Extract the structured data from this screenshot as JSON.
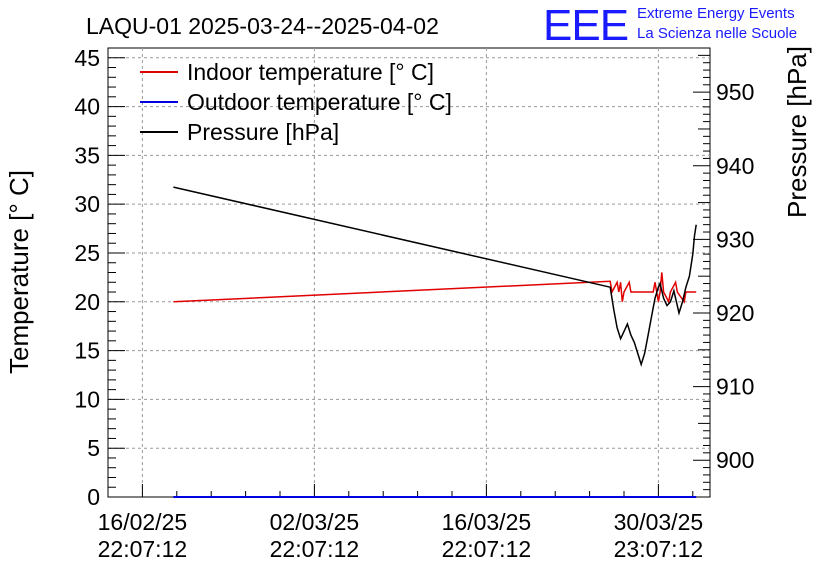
{
  "title": "LAQU-01 2025-03-24--2025-04-02",
  "logo": {
    "text": "EEE",
    "line1": "Extreme Energy Events",
    "line2": "La Scienza nelle Scuole",
    "color": "#1a1aff"
  },
  "chart_data": {
    "type": "line",
    "title": "LAQU-01 2025-03-24--2025-04-02",
    "ylabel": "Temperature [° C]",
    "y2label": "Pressure [hPa]",
    "ylim": [
      0,
      46
    ],
    "y2lim": [
      895,
      956
    ],
    "xlim_days": [
      -2,
      33
    ],
    "x_unit": "days since 16/02/25 22:07:12",
    "yticks": [
      0,
      5,
      10,
      15,
      20,
      25,
      30,
      35,
      40,
      45
    ],
    "y2ticks": [
      900,
      910,
      920,
      930,
      940,
      950
    ],
    "xticks": [
      {
        "day": 0,
        "line1": "16/02/25",
        "line2": "22:07:12"
      },
      {
        "day": 10,
        "line1": "02/03/25",
        "line2": "22:07:12"
      },
      {
        "day": 20,
        "line1": "16/03/25",
        "line2": "22:07:12"
      },
      {
        "day": 30,
        "line1": "30/03/25",
        "line2": "23:07:12"
      }
    ],
    "grid": true,
    "legend_position": "top-left",
    "series": [
      {
        "name": "Indoor temperature [° C]",
        "axis": "left",
        "color": "#e00000",
        "points": [
          [
            1.8,
            20.0
          ],
          [
            27.2,
            22.1
          ],
          [
            27.3,
            21.0
          ],
          [
            27.6,
            22.0
          ],
          [
            27.7,
            21.0
          ],
          [
            27.8,
            22.0
          ],
          [
            27.9,
            20.0
          ],
          [
            28.0,
            21.0
          ],
          [
            28.3,
            22.0
          ],
          [
            28.4,
            21.0
          ],
          [
            29.7,
            21.0
          ],
          [
            29.8,
            22.0
          ],
          [
            29.9,
            21.0
          ],
          [
            30.0,
            20.0
          ],
          [
            30.1,
            21.0
          ],
          [
            30.2,
            23.0
          ],
          [
            30.3,
            21.0
          ],
          [
            30.6,
            20.0
          ],
          [
            30.7,
            21.0
          ],
          [
            31.0,
            22.0
          ],
          [
            31.1,
            21.0
          ],
          [
            31.5,
            20.0
          ],
          [
            31.6,
            21.0
          ],
          [
            32.2,
            21.0
          ]
        ]
      },
      {
        "name": "Outdoor temperature [° C]",
        "axis": "left",
        "color": "#0000e0",
        "points": [
          [
            1.8,
            0
          ],
          [
            32.2,
            0
          ]
        ]
      },
      {
        "name": "Pressure [hPa]",
        "axis": "right",
        "color": "#000000",
        "points": [
          [
            1.8,
            937.1
          ],
          [
            27.2,
            923.5
          ],
          [
            27.4,
            920.5
          ],
          [
            27.6,
            918.0
          ],
          [
            27.8,
            916.5
          ],
          [
            28.0,
            917.5
          ],
          [
            28.2,
            918.5
          ],
          [
            28.4,
            917.0
          ],
          [
            28.6,
            916.0
          ],
          [
            28.8,
            914.5
          ],
          [
            29.0,
            913.0
          ],
          [
            29.2,
            914.5
          ],
          [
            29.4,
            917.0
          ],
          [
            29.6,
            919.5
          ],
          [
            29.8,
            922.0
          ],
          [
            30.0,
            923.5
          ],
          [
            30.1,
            924.0
          ],
          [
            30.2,
            923.0
          ],
          [
            30.3,
            922.0
          ],
          [
            30.5,
            921.0
          ],
          [
            30.7,
            921.5
          ],
          [
            30.9,
            923.0
          ],
          [
            31.0,
            922.0
          ],
          [
            31.2,
            920.0
          ],
          [
            31.4,
            921.5
          ],
          [
            31.6,
            923.5
          ],
          [
            31.8,
            925.0
          ],
          [
            32.0,
            928.0
          ],
          [
            32.1,
            930.5
          ],
          [
            32.2,
            932.0
          ]
        ]
      }
    ]
  }
}
